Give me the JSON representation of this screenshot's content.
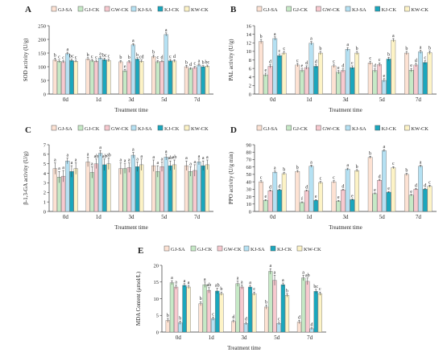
{
  "colors": {
    "GJ-SA": "#fde2d3",
    "GJ-CK": "#c6e9c6",
    "GW-CK": "#f7c9cf",
    "KJ-SA": "#b5e1f3",
    "KJ-CK": "#1aa7bd",
    "KW-CK": "#fdf3c6"
  },
  "chart_data": [
    {
      "type": "bar",
      "panel_label": "A",
      "xlabel": "Treatment time",
      "ylabel": "SOD activity (U/g)",
      "ylim": [
        0,
        250
      ],
      "yticks": [
        0,
        50,
        100,
        150,
        200,
        250
      ],
      "categories": [
        "0d",
        "1d",
        "3d",
        "5d",
        "7d"
      ],
      "series": [
        {
          "name": "GJ-SA",
          "values": [
            125,
            128,
            118,
            137,
            100
          ],
          "errors": [
            6,
            5,
            5,
            6,
            5
          ],
          "letters": [
            "b",
            "b",
            "b",
            "b",
            "b"
          ]
        },
        {
          "name": "GJ-CK",
          "values": [
            120,
            122,
            85,
            118,
            93
          ],
          "errors": [
            5,
            5,
            5,
            5,
            4
          ],
          "letters": [
            "c",
            "c",
            "e",
            "c",
            "d"
          ]
        },
        {
          "name": "GW-CK",
          "values": [
            118,
            120,
            118,
            120,
            97
          ],
          "errors": [
            4,
            4,
            5,
            4,
            4
          ],
          "letters": [
            "c",
            "c",
            "b",
            "d",
            "c"
          ]
        },
        {
          "name": "KJ-SA",
          "values": [
            148,
            132,
            180,
            218,
            106
          ],
          "errors": [
            5,
            5,
            5,
            6,
            5
          ],
          "letters": [
            "a",
            "a",
            "a",
            "a",
            "a"
          ]
        },
        {
          "name": "KJ-CK",
          "values": [
            123,
            126,
            128,
            122,
            100
          ],
          "errors": [
            5,
            5,
            5,
            5,
            4
          ],
          "letters": [
            "bc",
            "bc",
            "b",
            "c",
            "b"
          ]
        },
        {
          "name": "KW-CK",
          "values": [
            120,
            123,
            120,
            121,
            102
          ],
          "errors": [
            4,
            5,
            5,
            5,
            4
          ],
          "letters": [
            "c",
            "c",
            "cd",
            "d",
            "bc"
          ]
        }
      ]
    },
    {
      "type": "bar",
      "panel_label": "B",
      "xlabel": "Treatment time",
      "ylabel": "PAL activity (U/g)",
      "ylim": [
        0,
        16
      ],
      "yticks": [
        0,
        2,
        4,
        6,
        8,
        10,
        12,
        14,
        16
      ],
      "categories": [
        "0d",
        "1d",
        "3d",
        "5d",
        "7d"
      ],
      "series": [
        {
          "name": "GJ-SA",
          "values": [
            12.3,
            6.8,
            6.6,
            7.3,
            9.6
          ],
          "errors": [
            0.5,
            0.4,
            0.4,
            0.4,
            0.4
          ],
          "letters": [
            "b",
            "c",
            "c",
            "c",
            "b"
          ]
        },
        {
          "name": "GJ-CK",
          "values": [
            4.5,
            5.5,
            5.1,
            5.5,
            5.6
          ],
          "errors": [
            0.4,
            0.4,
            0.4,
            0.4,
            0.4
          ],
          "letters": [
            "e",
            "e",
            "e",
            "d",
            "e"
          ]
        },
        {
          "name": "GW-CK",
          "values": [
            6.5,
            6.2,
            5.5,
            6.9,
            6.8
          ],
          "errors": [
            0.4,
            0.4,
            0.4,
            0.4,
            0.4
          ],
          "letters": [
            "d",
            "d",
            "d",
            "c",
            "d"
          ]
        },
        {
          "name": "KJ-SA",
          "values": [
            13.0,
            11.9,
            10.5,
            3.2,
            9.9
          ],
          "errors": [
            0.4,
            0.4,
            0.4,
            0.4,
            0.4
          ],
          "letters": [
            "a",
            "a",
            "a",
            "e",
            "a"
          ]
        },
        {
          "name": "KJ-CK",
          "values": [
            9.0,
            6.5,
            6.2,
            8.2,
            7.4
          ],
          "errors": [
            0.4,
            0.4,
            0.4,
            0.4,
            0.4
          ],
          "letters": [
            "c",
            "d",
            "c",
            "b",
            "c"
          ]
        },
        {
          "name": "KW-CK",
          "values": [
            9.6,
            9.6,
            9.6,
            12.6,
            9.7
          ],
          "errors": [
            0.4,
            0.4,
            0.4,
            0.4,
            0.4
          ],
          "letters": [
            "c",
            "b",
            "b",
            "a",
            "b"
          ]
        }
      ]
    },
    {
      "type": "bar",
      "panel_label": "C",
      "xlabel": "Treatment time",
      "ylabel": "β-1,3-GA activity (U/g)",
      "ylim": [
        0,
        7
      ],
      "yticks": [
        0,
        1,
        2,
        3,
        4,
        5,
        6,
        7
      ],
      "categories": [
        "0d",
        "1d",
        "3d",
        "5d",
        "7d"
      ],
      "series": [
        {
          "name": "GJ-SA",
          "values": [
            4.5,
            5.2,
            4.5,
            4.8,
            4.8
          ],
          "errors": [
            0.6,
            0.5,
            0.6,
            0.6,
            0.5
          ],
          "letters": [
            "a",
            "a",
            "a",
            "a",
            "a"
          ]
        },
        {
          "name": "GJ-CK",
          "values": [
            3.6,
            4.1,
            4.5,
            4.2,
            4.2
          ],
          "errors": [
            0.6,
            0.6,
            0.5,
            0.6,
            0.5
          ],
          "letters": [
            "a",
            "a",
            "a",
            "a",
            "a"
          ]
        },
        {
          "name": "GW-CK",
          "values": [
            3.7,
            5.0,
            4.6,
            4.7,
            4.3
          ],
          "errors": [
            0.6,
            0.5,
            0.5,
            0.5,
            0.6
          ],
          "letters": [
            "a",
            "ab",
            "a",
            "a",
            "a"
          ]
        },
        {
          "name": "KJ-SA",
          "values": [
            5.3,
            6.1,
            5.9,
            5.7,
            5.2
          ],
          "errors": [
            0.3,
            0.3,
            0.3,
            0.3,
            0.3
          ],
          "letters": [
            "a",
            "a",
            "a",
            "a",
            "a"
          ]
        },
        {
          "name": "KJ-CK",
          "values": [
            4.2,
            4.9,
            4.7,
            4.8,
            4.8
          ],
          "errors": [
            0.6,
            0.6,
            0.5,
            0.5,
            0.5
          ],
          "letters": [
            "a",
            "ab",
            "a",
            "ab",
            "a"
          ]
        },
        {
          "name": "KW-CK",
          "values": [
            4.5,
            5.0,
            4.9,
            4.9,
            4.9
          ],
          "errors": [
            0.6,
            0.6,
            0.6,
            0.5,
            0.5
          ],
          "letters": [
            "a",
            "ab",
            "a",
            "ab",
            "a"
          ]
        }
      ]
    },
    {
      "type": "bar",
      "panel_label": "D",
      "xlabel": "Treatment  time",
      "ylabel": "PPO activity (U/g min)",
      "ylim": [
        0,
        90
      ],
      "yticks": [
        0,
        10,
        20,
        30,
        40,
        50,
        60,
        70,
        80,
        90
      ],
      "categories": [
        "0d",
        "1d",
        "3d",
        "5d",
        "7d"
      ],
      "series": [
        {
          "name": "GJ-SA",
          "values": [
            40,
            54,
            40,
            73,
            50
          ],
          "errors": [
            1.5,
            1.5,
            1.5,
            1.5,
            1.5
          ],
          "letters": [
            "c",
            "b",
            "c",
            "b",
            "b"
          ]
        },
        {
          "name": "GJ-CK",
          "values": [
            15,
            12,
            14,
            24,
            22
          ],
          "errors": [
            1.0,
            1.0,
            1.0,
            1.0,
            1.0
          ],
          "letters": [
            "e",
            "f",
            "e",
            "e",
            "e"
          ]
        },
        {
          "name": "GW-CK",
          "values": [
            28,
            28,
            29,
            42,
            30
          ],
          "errors": [
            1.0,
            1.0,
            1.0,
            1.0,
            1.0
          ],
          "letters": [
            "d",
            "d",
            "d",
            "d",
            "d"
          ]
        },
        {
          "name": "KJ-SA",
          "values": [
            53,
            61,
            57,
            82,
            61
          ],
          "errors": [
            1.5,
            1.5,
            1.5,
            1.5,
            1.5
          ],
          "letters": [
            "a",
            "a",
            "a",
            "a",
            "a"
          ]
        },
        {
          "name": "KJ-CK",
          "values": [
            29,
            15,
            16,
            26,
            30
          ],
          "errors": [
            1.0,
            1.0,
            1.0,
            1.0,
            1.0
          ],
          "letters": [
            "d",
            "e",
            "e",
            "e",
            "d"
          ]
        },
        {
          "name": "KW-CK",
          "values": [
            51,
            39,
            55,
            59,
            34
          ],
          "errors": [
            1.5,
            1.5,
            1.5,
            1.5,
            1.5
          ],
          "letters": [
            "b",
            "c",
            "b",
            "c",
            "c"
          ]
        }
      ]
    },
    {
      "type": "bar",
      "panel_label": "E",
      "xlabel": "Treatment time",
      "ylabel": "MDA Content (μmol/L)",
      "ylim": [
        0,
        20
      ],
      "yticks": [
        0,
        5,
        10,
        15,
        20
      ],
      "categories": [
        "0d",
        "1d",
        "3d",
        "5d",
        "7d"
      ],
      "series": [
        {
          "name": "GJ-SA",
          "values": [
            3.5,
            8.5,
            3.2,
            7.5,
            3.0
          ],
          "errors": [
            0.6,
            0.6,
            0.4,
            0.6,
            0.5
          ],
          "letters": [
            "b",
            "b",
            "d",
            "b",
            "d"
          ]
        },
        {
          "name": "GJ-CK",
          "values": [
            14.8,
            14.2,
            14.5,
            18.2,
            16.2
          ],
          "errors": [
            0.6,
            0.8,
            0.8,
            0.8,
            0.8
          ],
          "letters": [
            "a",
            "a",
            "a",
            "a",
            "a"
          ]
        },
        {
          "name": "GW-CK",
          "values": [
            13.5,
            12.5,
            13.5,
            15.5,
            15.2
          ],
          "errors": [
            0.6,
            0.8,
            0.6,
            1.5,
            1.0
          ],
          "letters": [
            "a",
            "ab",
            "a",
            "a",
            "ab"
          ]
        },
        {
          "name": "KJ-SA",
          "values": [
            2.8,
            4.0,
            2.6,
            2.6,
            1.0
          ],
          "errors": [
            0.5,
            0.5,
            0.4,
            0.4,
            0.3
          ],
          "letters": [
            "b",
            "c",
            "d",
            "c",
            "d"
          ]
        },
        {
          "name": "KJ-CK",
          "values": [
            14.0,
            12.3,
            13.5,
            14.2,
            12.2
          ],
          "errors": [
            0.5,
            0.8,
            0.5,
            0.5,
            0.6
          ],
          "letters": [
            "a",
            "ab",
            "a",
            "a",
            "bc"
          ]
        },
        {
          "name": "KW-CK",
          "values": [
            13.5,
            11.5,
            11.5,
            11.0,
            11.5
          ],
          "errors": [
            0.5,
            0.5,
            0.5,
            0.5,
            0.5
          ],
          "letters": [
            "a",
            "b",
            "c",
            "b",
            "c"
          ]
        }
      ]
    }
  ]
}
